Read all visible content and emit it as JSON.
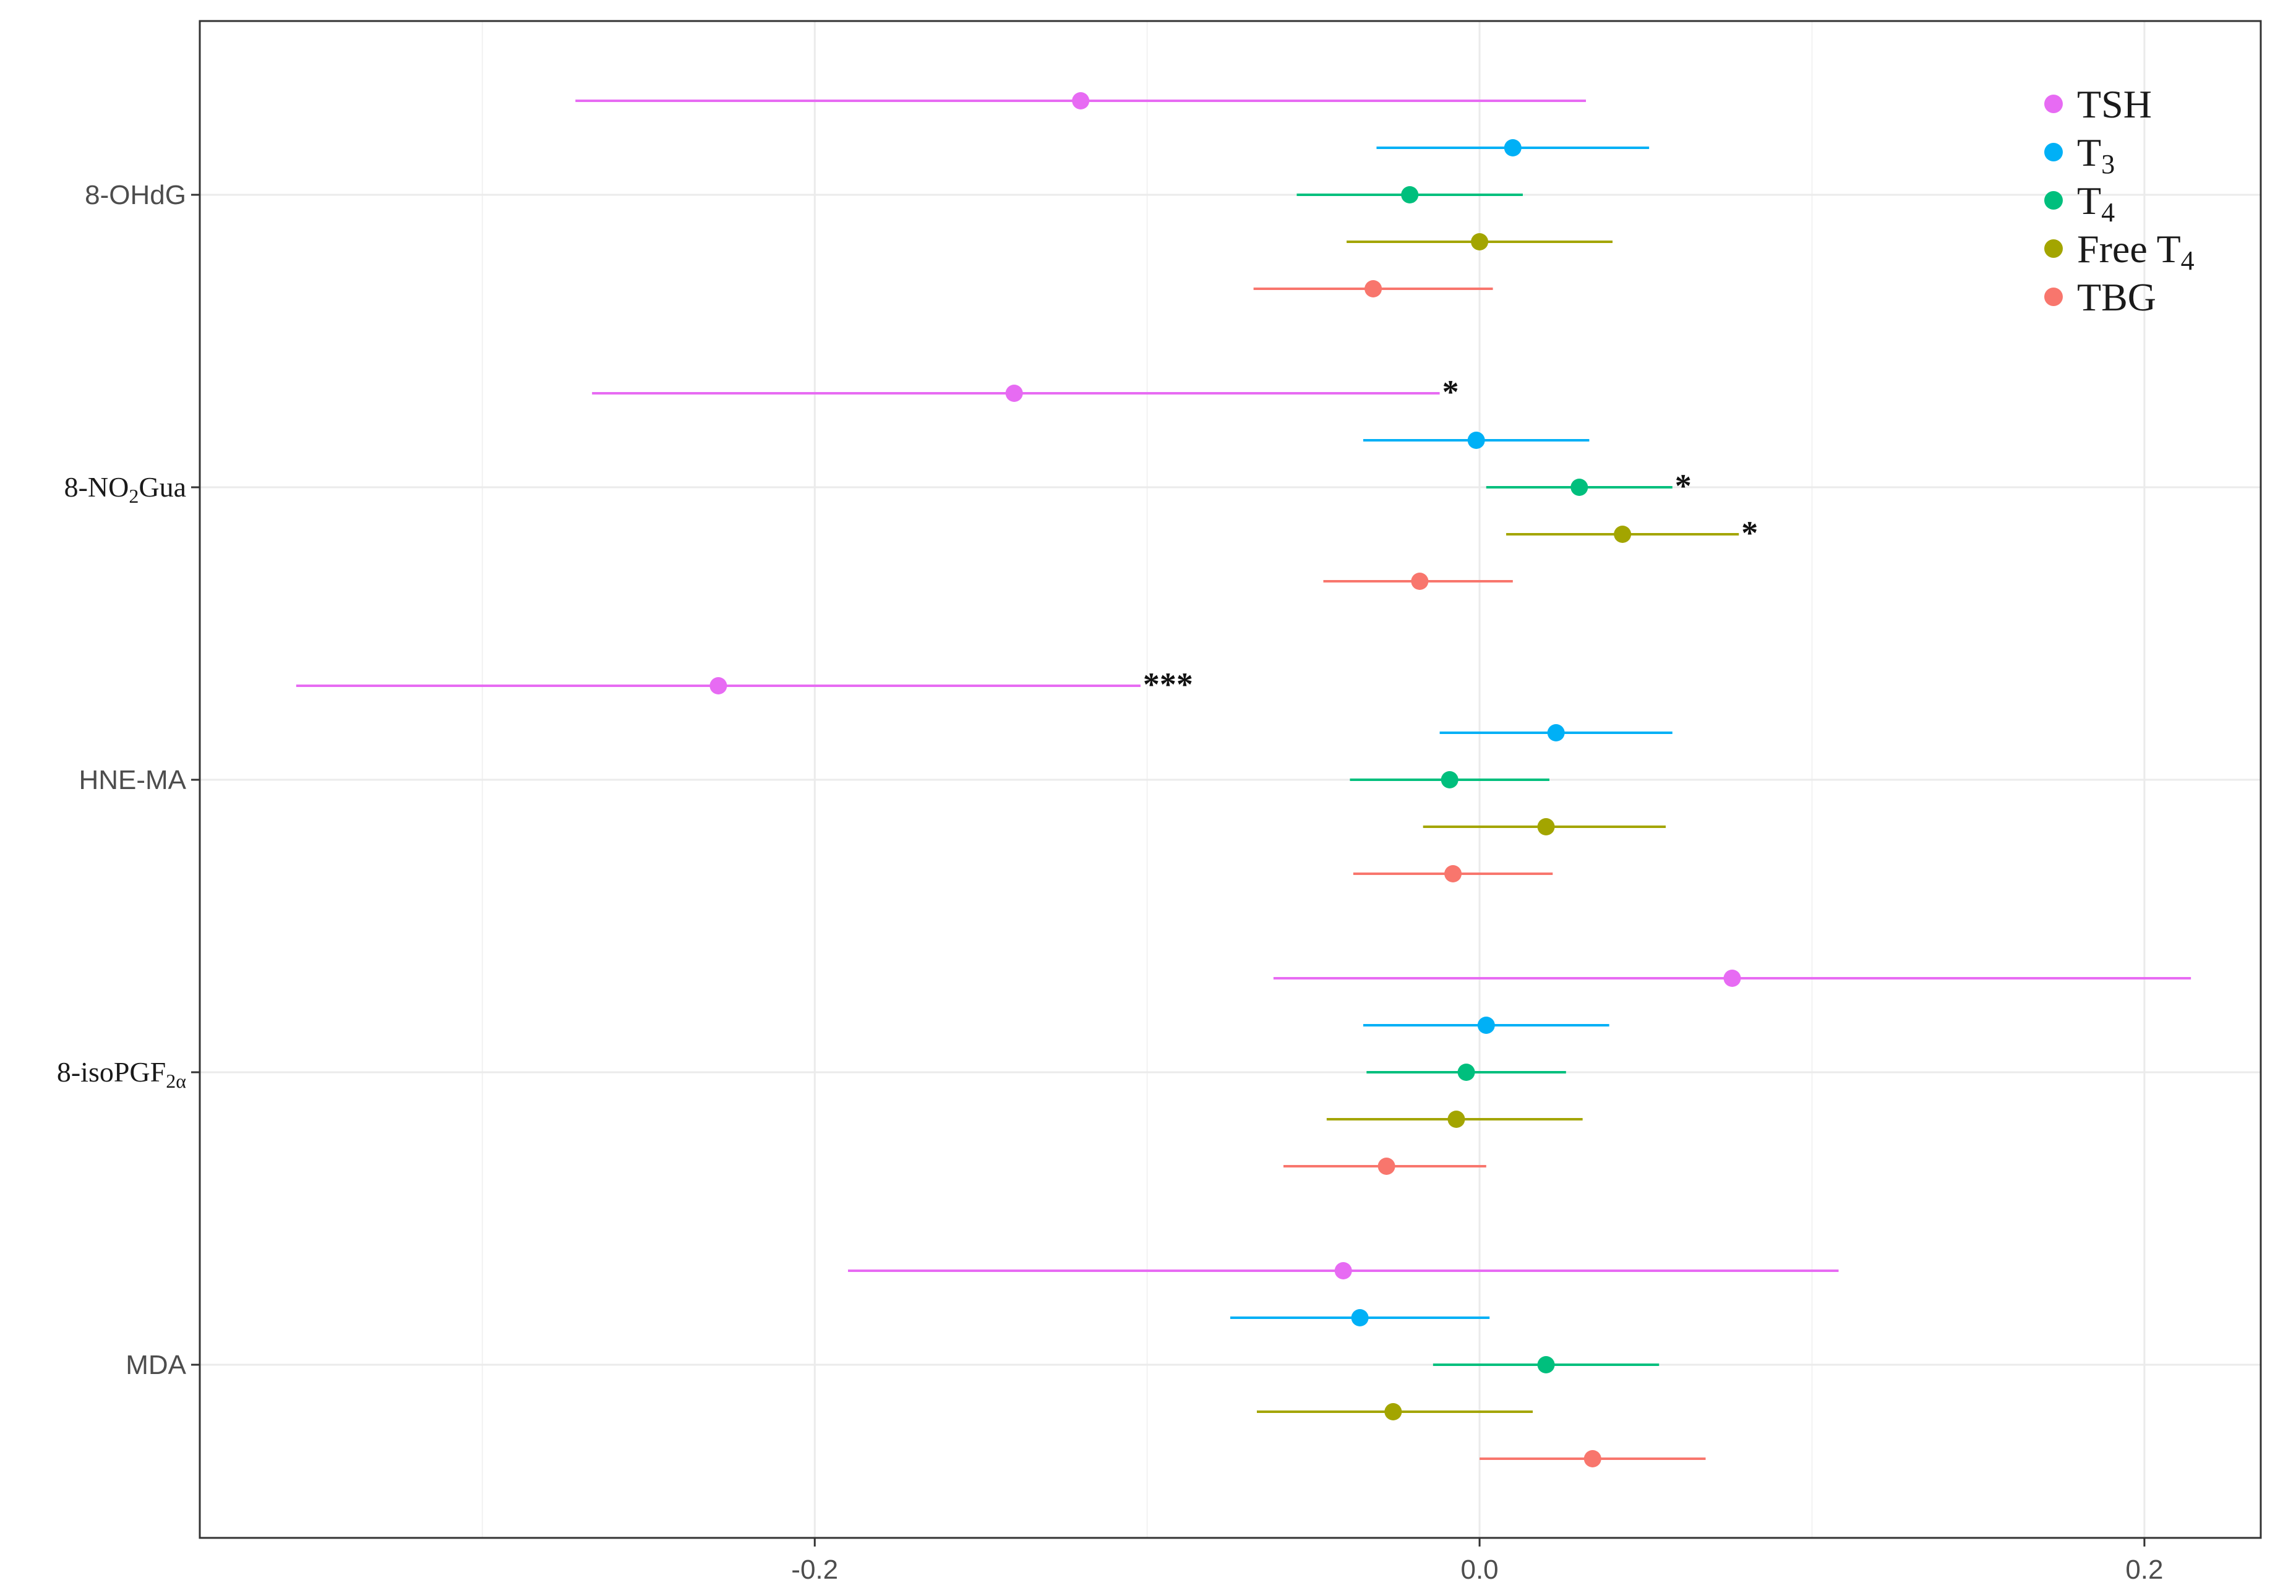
{
  "chart_data": {
    "type": "scatter",
    "subtype": "forest-plot",
    "title": "",
    "xlabel": "",
    "ylabel": "",
    "xlim": [
      -0.385,
      0.235
    ],
    "x_ticks": [
      {
        "value": -0.2,
        "label": "-0.2"
      },
      {
        "value": 0.0,
        "label": "0.0"
      },
      {
        "value": 0.2,
        "label": "0.2"
      }
    ],
    "x_minor_ticks": [
      -0.3,
      -0.1,
      0.1
    ],
    "grid": true,
    "legend_position": "top-right",
    "categories": [
      {
        "key": "8-OHdG",
        "base": "8-OHdG",
        "sub": "",
        "rest": "",
        "serif": false
      },
      {
        "key": "8-NO2Gua",
        "base": "8-NO",
        "sub": "2",
        "rest": "Gua",
        "serif": true
      },
      {
        "key": "HNE-MA",
        "base": "HNE-MA",
        "sub": "",
        "rest": "",
        "serif": false
      },
      {
        "key": "8-isoPGF2a",
        "base": "8-isoPGF",
        "sub": "2α",
        "rest": "",
        "serif": true
      },
      {
        "key": "MDA",
        "base": "MDA",
        "sub": "",
        "rest": "",
        "serif": false
      }
    ],
    "series": [
      {
        "name": "TSH",
        "name_base": "TSH",
        "name_sub": "",
        "color": "#E76BF3",
        "points": [
          {
            "category": "8-OHdG",
            "estimate": -0.12,
            "lower": -0.272,
            "upper": 0.032,
            "sig": ""
          },
          {
            "category": "8-NO2Gua",
            "estimate": -0.14,
            "lower": -0.267,
            "upper": -0.012,
            "sig": "*"
          },
          {
            "category": "HNE-MA",
            "estimate": -0.229,
            "lower": -0.356,
            "upper": -0.102,
            "sig": "***"
          },
          {
            "category": "8-isoPGF2a",
            "estimate": 0.076,
            "lower": -0.062,
            "upper": 0.214,
            "sig": ""
          },
          {
            "category": "MDA",
            "estimate": -0.041,
            "lower": -0.19,
            "upper": 0.108,
            "sig": ""
          }
        ]
      },
      {
        "name": "T3",
        "name_base": "T",
        "name_sub": "3",
        "color": "#00B0F6",
        "points": [
          {
            "category": "8-OHdG",
            "estimate": 0.01,
            "lower": -0.031,
            "upper": 0.051,
            "sig": ""
          },
          {
            "category": "8-NO2Gua",
            "estimate": -0.001,
            "lower": -0.035,
            "upper": 0.033,
            "sig": ""
          },
          {
            "category": "HNE-MA",
            "estimate": 0.023,
            "lower": -0.012,
            "upper": 0.058,
            "sig": ""
          },
          {
            "category": "8-isoPGF2a",
            "estimate": 0.002,
            "lower": -0.035,
            "upper": 0.039,
            "sig": ""
          },
          {
            "category": "MDA",
            "estimate": -0.036,
            "lower": -0.075,
            "upper": 0.003,
            "sig": ""
          }
        ]
      },
      {
        "name": "T4",
        "name_base": "T",
        "name_sub": "4",
        "color": "#00BF7D",
        "points": [
          {
            "category": "8-OHdG",
            "estimate": -0.021,
            "lower": -0.055,
            "upper": 0.013,
            "sig": ""
          },
          {
            "category": "8-NO2Gua",
            "estimate": 0.03,
            "lower": 0.002,
            "upper": 0.058,
            "sig": "*"
          },
          {
            "category": "HNE-MA",
            "estimate": -0.009,
            "lower": -0.039,
            "upper": 0.021,
            "sig": ""
          },
          {
            "category": "8-isoPGF2a",
            "estimate": -0.004,
            "lower": -0.034,
            "upper": 0.026,
            "sig": ""
          },
          {
            "category": "MDA",
            "estimate": 0.02,
            "lower": -0.014,
            "upper": 0.054,
            "sig": ""
          }
        ]
      },
      {
        "name": "Free T4",
        "name_base": "Free T",
        "name_sub": "4",
        "color": "#A3A500",
        "points": [
          {
            "category": "8-OHdG",
            "estimate": 0.0,
            "lower": -0.04,
            "upper": 0.04,
            "sig": ""
          },
          {
            "category": "8-NO2Gua",
            "estimate": 0.043,
            "lower": 0.008,
            "upper": 0.078,
            "sig": "*"
          },
          {
            "category": "HNE-MA",
            "estimate": 0.02,
            "lower": -0.017,
            "upper": 0.056,
            "sig": ""
          },
          {
            "category": "8-isoPGF2a",
            "estimate": -0.007,
            "lower": -0.046,
            "upper": 0.031,
            "sig": ""
          },
          {
            "category": "MDA",
            "estimate": -0.026,
            "lower": -0.067,
            "upper": 0.016,
            "sig": ""
          }
        ]
      },
      {
        "name": "TBG",
        "name_base": "TBG",
        "name_sub": "",
        "color": "#F8766D",
        "points": [
          {
            "category": "8-OHdG",
            "estimate": -0.032,
            "lower": -0.068,
            "upper": 0.004,
            "sig": ""
          },
          {
            "category": "8-NO2Gua",
            "estimate": -0.018,
            "lower": -0.047,
            "upper": 0.01,
            "sig": ""
          },
          {
            "category": "HNE-MA",
            "estimate": -0.008,
            "lower": -0.038,
            "upper": 0.022,
            "sig": ""
          },
          {
            "category": "8-isoPGF2a",
            "estimate": -0.028,
            "lower": -0.059,
            "upper": 0.002,
            "sig": ""
          },
          {
            "category": "MDA",
            "estimate": 0.034,
            "lower": 0.0,
            "upper": 0.068,
            "sig": ""
          }
        ]
      }
    ]
  }
}
